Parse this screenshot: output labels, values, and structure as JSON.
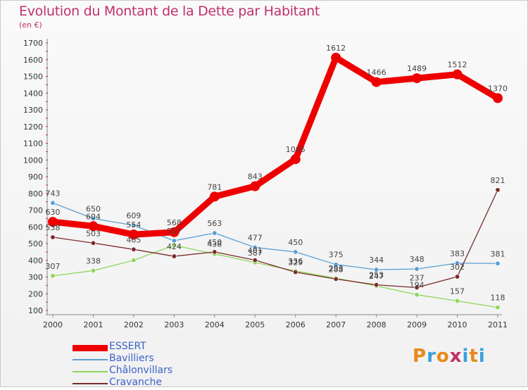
{
  "title": "Evolution du Montant de la Dette par Habitant",
  "subtitle": "(en €)",
  "logo": {
    "text": "Proxiti",
    "colors": [
      "#e8891a",
      "#3aa0dc",
      "#e8891a",
      "#c0306a",
      "#3aa0dc",
      "#e8891a",
      "#3aa0dc"
    ]
  },
  "chart_data": {
    "type": "line",
    "title": "Evolution du Montant de la Dette par Habitant",
    "subtitle": "(en €)",
    "x": [
      "2000",
      "2001",
      "2002",
      "2003",
      "2004",
      "2005",
      "2006",
      "2007",
      "2008",
      "2009",
      "2010",
      "2011"
    ],
    "ylim": [
      100,
      1700
    ],
    "yticks": [
      100,
      200,
      300,
      400,
      500,
      600,
      700,
      800,
      900,
      1000,
      1100,
      1200,
      1300,
      1400,
      1500,
      1600,
      1700
    ],
    "grid": false,
    "legend_position": "bottom-left",
    "series": [
      {
        "name": "ESSERT",
        "color": "#ee0000",
        "values": [
          630,
          604,
          554,
          568,
          781,
          843,
          1005,
          1612,
          1466,
          1489,
          1512,
          1370
        ],
        "labels": [
          "630",
          "604",
          "554",
          "568",
          "781",
          "843",
          "1005",
          "1612",
          "1466",
          "1489",
          "1512",
          "1370"
        ]
      },
      {
        "name": "Bavilliers",
        "color": "#5a9fd4",
        "values": [
          743,
          650,
          609,
          517,
          563,
          477,
          450,
          375,
          344,
          348,
          383,
          381
        ],
        "labels": [
          "743",
          "650",
          "609",
          "517",
          "563",
          "477",
          "450",
          "375",
          "344",
          "348",
          "383",
          "381"
        ]
      },
      {
        "name": "Châlonvillars",
        "color": "#8fd65a",
        "values": [
          307,
          338,
          400,
          490,
          438,
          387,
          336,
          293,
          247,
          194,
          157,
          118
        ],
        "labels": [
          "307",
          "338",
          "",
          "",
          "438",
          "387",
          "336",
          "293",
          "247",
          "194",
          "157",
          "118"
        ]
      },
      {
        "name": "Cravanche",
        "color": "#7a2a2a",
        "values": [
          538,
          503,
          465,
          424,
          450,
          401,
          329,
          288,
          253,
          237,
          302,
          821
        ],
        "labels": [
          "538",
          "503",
          "465",
          "424",
          "450",
          "401",
          "329",
          "288",
          "253",
          "237",
          "302",
          "821"
        ]
      }
    ]
  }
}
